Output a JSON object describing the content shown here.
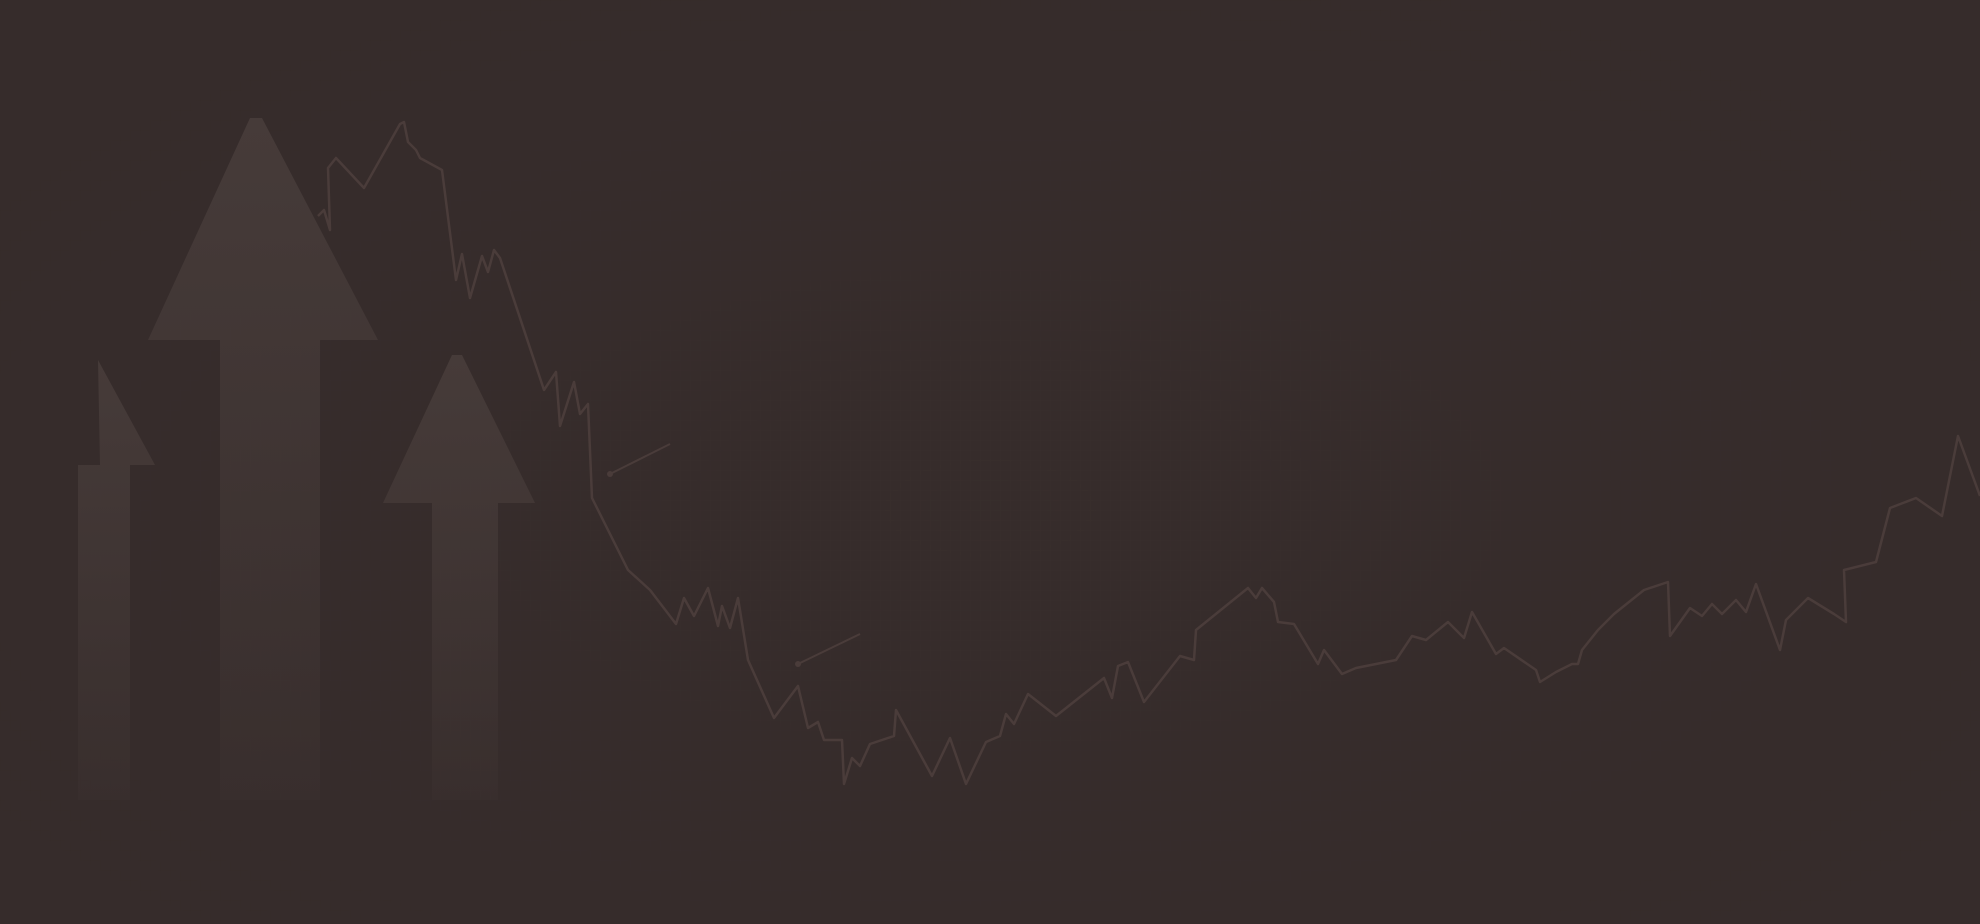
{
  "background": {
    "base_color": "#362c2b",
    "grid_color": "#3b3130",
    "arrow_color": "#463b39",
    "line_color": "#4a3c3a"
  },
  "decoration": {
    "icons": [
      "up-arrow-icon",
      "up-arrow-icon",
      "up-arrow-icon"
    ],
    "line": "decorative-market-trend-line"
  }
}
